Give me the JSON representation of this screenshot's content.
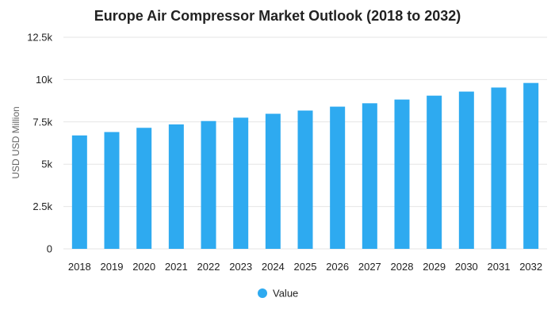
{
  "chart_data": {
    "type": "bar",
    "title": "Europe Air Compressor Market Outlook (2018 to 2032)",
    "xlabel": "",
    "ylabel": "USD USD Million",
    "categories": [
      "2018",
      "2019",
      "2020",
      "2021",
      "2022",
      "2023",
      "2024",
      "2025",
      "2026",
      "2027",
      "2028",
      "2029",
      "2030",
      "2031",
      "2032"
    ],
    "series": [
      {
        "name": "Value",
        "color": "#2eaaf0",
        "values": [
          6700,
          6900,
          7150,
          7350,
          7550,
          7750,
          7980,
          8170,
          8400,
          8600,
          8820,
          9050,
          9290,
          9530,
          9800
        ]
      }
    ],
    "ylim": [
      0,
      12500
    ],
    "yticks": [
      0,
      2500,
      5000,
      7500,
      10000,
      12500
    ],
    "ytick_labels": [
      "0",
      "2.5k",
      "5k",
      "7.5k",
      "10k",
      "12.5k"
    ],
    "grid": true,
    "legend_position": "bottom-center"
  }
}
